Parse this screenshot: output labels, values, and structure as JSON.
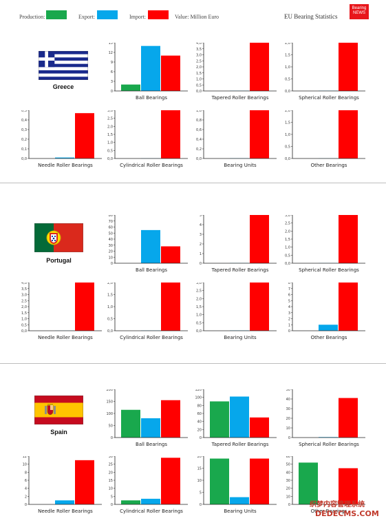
{
  "legend": {
    "production_label": "Production:",
    "export_label": "Export:",
    "import_label": "Import:",
    "value_label": "Value: Million Euro"
  },
  "site_title": "EU Bearing Statistics",
  "logo": {
    "line1": "Bearing",
    "line2": "NEWS"
  },
  "colors": {
    "production": "#19a84d",
    "export": "#06a7eb",
    "import": "#ff0000"
  },
  "countries": [
    {
      "name": "Greece",
      "flag_icon": "greece-flag-icon"
    },
    {
      "name": "Portugal",
      "flag_icon": "portugal-flag-icon"
    },
    {
      "name": "Spain",
      "flag_icon": "spain-flag-icon"
    }
  ],
  "watermark": {
    "line1": "织梦内容管理系统",
    "line2": "DEDECMS.COM"
  },
  "chart_data": [
    {
      "country": "Greece",
      "title": "Ball Bearings",
      "type": "bar",
      "categories": [
        "Production",
        "Export",
        "Import"
      ],
      "values": [
        2,
        14,
        11
      ],
      "ylim": [
        0,
        15
      ],
      "ticks": [
        0,
        3,
        6,
        9,
        12,
        15
      ],
      "tick_labels": [
        "0",
        "3",
        "6",
        "9",
        "12",
        "15"
      ]
    },
    {
      "country": "Greece",
      "title": "Tapered Roller Bearings",
      "type": "bar",
      "categories": [
        "Production",
        "Export",
        "Import"
      ],
      "values": [
        0,
        0.02,
        4
      ],
      "ylim": [
        0,
        4
      ],
      "ticks": [
        0,
        0.5,
        1,
        1.5,
        2,
        2.5,
        3,
        3.5,
        4
      ],
      "tick_labels": [
        "0,0",
        "0,5",
        "1,0",
        "1,5",
        "2,0",
        "2,5",
        "3,0",
        "3,5",
        "4,0"
      ]
    },
    {
      "country": "Greece",
      "title": "Spherical Roller Bearings",
      "type": "bar",
      "categories": [
        "Production",
        "Export",
        "Import"
      ],
      "values": [
        0,
        0.01,
        2
      ],
      "ylim": [
        0,
        2
      ],
      "ticks": [
        0,
        0.5,
        1,
        1.5,
        2
      ],
      "tick_labels": [
        "0,0",
        "0,5",
        "1,0",
        "1,5",
        "2,0"
      ]
    },
    {
      "country": "Greece",
      "title": "Needle Roller Bearings",
      "type": "bar",
      "categories": [
        "Production",
        "Export",
        "Import"
      ],
      "values": [
        0,
        0.01,
        0.47
      ],
      "ylim": [
        0,
        0.5
      ],
      "ticks": [
        0,
        0.1,
        0.2,
        0.3,
        0.4,
        0.5
      ],
      "tick_labels": [
        "0,0",
        "0,1",
        "0,2",
        "0,3",
        "0,4",
        "0,5"
      ]
    },
    {
      "country": "Greece",
      "title": "Cylindrical Roller Bearings",
      "type": "bar",
      "categories": [
        "Production",
        "Export",
        "Import"
      ],
      "values": [
        0,
        0.01,
        3
      ],
      "ylim": [
        0,
        3
      ],
      "ticks": [
        0,
        0.5,
        1,
        1.5,
        2,
        2.5,
        3
      ],
      "tick_labels": [
        "0,0",
        "0,5",
        "1,0",
        "1,5",
        "2,0",
        "2,5",
        "3,0"
      ]
    },
    {
      "country": "Greece",
      "title": "Bearing Units",
      "type": "bar",
      "categories": [
        "Production",
        "Export",
        "Import"
      ],
      "values": [
        0,
        0.005,
        1
      ],
      "ylim": [
        0,
        1
      ],
      "ticks": [
        0,
        0.2,
        0.4,
        0.6,
        0.8,
        1
      ],
      "tick_labels": [
        "0,0",
        "0,2",
        "0,4",
        "0,6",
        "0,8",
        "1,0"
      ]
    },
    {
      "country": "Greece",
      "title": "Other Bearings",
      "type": "bar",
      "categories": [
        "Production",
        "Export",
        "Import"
      ],
      "values": [
        0,
        0.005,
        2
      ],
      "ylim": [
        0,
        2
      ],
      "ticks": [
        0,
        0.5,
        1,
        1.5,
        2
      ],
      "tick_labels": [
        "0,0",
        "0,5",
        "1,0",
        "1,5",
        "2,0"
      ]
    },
    {
      "country": "Portugal",
      "title": "Ball Bearings",
      "type": "bar",
      "categories": [
        "Production",
        "Export",
        "Import"
      ],
      "values": [
        0,
        55,
        28
      ],
      "ylim": [
        0,
        80
      ],
      "ticks": [
        0,
        10,
        20,
        30,
        40,
        50,
        60,
        70,
        80
      ],
      "tick_labels": [
        "0",
        "10",
        "20",
        "30",
        "40",
        "50",
        "60",
        "70",
        "80"
      ]
    },
    {
      "country": "Portugal",
      "title": "Tapered Roller Bearings",
      "type": "bar",
      "categories": [
        "Production",
        "Export",
        "Import"
      ],
      "values": [
        0,
        0.02,
        5
      ],
      "ylim": [
        0,
        5
      ],
      "ticks": [
        0,
        1,
        2,
        3,
        4,
        5
      ],
      "tick_labels": [
        "0",
        "1",
        "2",
        "3",
        "4",
        "5"
      ]
    },
    {
      "country": "Portugal",
      "title": "Spherical Roller Bearings",
      "type": "bar",
      "categories": [
        "Production",
        "Export",
        "Import"
      ],
      "values": [
        0,
        0.01,
        3
      ],
      "ylim": [
        0,
        3
      ],
      "ticks": [
        0,
        0.5,
        1,
        1.5,
        2,
        2.5,
        3
      ],
      "tick_labels": [
        "0,0",
        "0,5",
        "1,0",
        "1,5",
        "2,0",
        "2,5",
        "3,0"
      ]
    },
    {
      "country": "Portugal",
      "title": "Needle Roller Bearings",
      "type": "bar",
      "categories": [
        "Production",
        "Export",
        "Import"
      ],
      "values": [
        0,
        0.01,
        4
      ],
      "ylim": [
        0,
        4
      ],
      "ticks": [
        0,
        0.5,
        1,
        1.5,
        2,
        2.5,
        3,
        3.5,
        4
      ],
      "tick_labels": [
        "0,0",
        "0,5",
        "1,0",
        "1,5",
        "2,0",
        "2,5",
        "3,0",
        "3,5",
        "4,0"
      ]
    },
    {
      "country": "Portugal",
      "title": "Cylindrical Roller Bearings",
      "type": "bar",
      "categories": [
        "Production",
        "Export",
        "Import"
      ],
      "values": [
        0,
        0.01,
        2
      ],
      "ylim": [
        0,
        2
      ],
      "ticks": [
        0,
        0.5,
        1,
        1.5,
        2
      ],
      "tick_labels": [
        "0,0",
        "0,5",
        "1,0",
        "1,5",
        "2,0"
      ]
    },
    {
      "country": "Portugal",
      "title": "Bearing Units",
      "type": "bar",
      "categories": [
        "Production",
        "Export",
        "Import"
      ],
      "values": [
        0,
        0.02,
        3
      ],
      "ylim": [
        0,
        3
      ],
      "ticks": [
        0,
        0.5,
        1,
        1.5,
        2,
        2.5,
        3
      ],
      "tick_labels": [
        "0,0",
        "0,5",
        "1,0",
        "1,5",
        "2,0",
        "2,5",
        "3,0"
      ]
    },
    {
      "country": "Portugal",
      "title": "Other Bearings",
      "type": "bar",
      "categories": [
        "Production",
        "Export",
        "Import"
      ],
      "values": [
        0,
        1,
        8
      ],
      "ylim": [
        0,
        8
      ],
      "ticks": [
        0,
        1,
        2,
        3,
        4,
        5,
        6,
        7,
        8
      ],
      "tick_labels": [
        "0",
        "1",
        "2",
        "3",
        "4",
        "5",
        "6",
        "7",
        "8"
      ]
    },
    {
      "country": "Spain",
      "title": "Ball Bearings",
      "type": "bar",
      "categories": [
        "Production",
        "Export",
        "Import"
      ],
      "values": [
        115,
        80,
        155
      ],
      "ylim": [
        0,
        200
      ],
      "ticks": [
        0,
        50,
        100,
        150,
        200
      ],
      "tick_labels": [
        "0",
        "50",
        "100",
        "150",
        "200"
      ]
    },
    {
      "country": "Spain",
      "title": "Tapered Roller Bearings",
      "type": "bar",
      "categories": [
        "Production",
        "Export",
        "Import"
      ],
      "values": [
        90,
        102,
        50
      ],
      "ylim": [
        0,
        120
      ],
      "ticks": [
        0,
        20,
        40,
        60,
        80,
        100,
        120
      ],
      "tick_labels": [
        "0",
        "20",
        "40",
        "60",
        "80",
        "100",
        "120"
      ]
    },
    {
      "country": "Spain",
      "title": "Spherical Roller Bearings",
      "type": "bar",
      "categories": [
        "Production",
        "Export",
        "Import"
      ],
      "values": [
        0,
        0.5,
        41
      ],
      "ylim": [
        0,
        50
      ],
      "ticks": [
        0,
        10,
        20,
        30,
        40,
        50
      ],
      "tick_labels": [
        "0",
        "10",
        "20",
        "30",
        "40",
        "50"
      ]
    },
    {
      "country": "Spain",
      "title": "Needle Roller Bearings",
      "type": "bar",
      "categories": [
        "Production",
        "Export",
        "Import"
      ],
      "values": [
        0,
        1,
        11
      ],
      "ylim": [
        0,
        12
      ],
      "ticks": [
        0,
        2,
        4,
        6,
        8,
        10,
        12
      ],
      "tick_labels": [
        "0",
        "2",
        "4",
        "6",
        "8",
        "10",
        "12"
      ]
    },
    {
      "country": "Spain",
      "title": "Cylindrical Roller Bearings",
      "type": "bar",
      "categories": [
        "Production",
        "Export",
        "Import"
      ],
      "values": [
        2.5,
        3.5,
        29
      ],
      "ylim": [
        0,
        30
      ],
      "ticks": [
        0,
        5,
        10,
        15,
        20,
        25,
        30
      ],
      "tick_labels": [
        "0",
        "5",
        "10",
        "15",
        "20",
        "25",
        "30"
      ]
    },
    {
      "country": "Spain",
      "title": "Bearing Units",
      "type": "bar",
      "categories": [
        "Production",
        "Export",
        "Import"
      ],
      "values": [
        19,
        3,
        19
      ],
      "ylim": [
        0,
        20
      ],
      "ticks": [
        0,
        5,
        10,
        15,
        20
      ],
      "tick_labels": [
        "0",
        "5",
        "10",
        "15",
        "20"
      ]
    },
    {
      "country": "Spain",
      "title": "Other Bearings",
      "type": "bar",
      "categories": [
        "Production",
        "Export",
        "Import"
      ],
      "values": [
        52,
        0,
        45
      ],
      "ylim": [
        0,
        60
      ],
      "ticks": [
        0,
        10,
        20,
        30,
        40,
        50,
        60
      ],
      "tick_labels": [
        "0",
        "10",
        "20",
        "30",
        "40",
        "50",
        "60"
      ]
    }
  ]
}
